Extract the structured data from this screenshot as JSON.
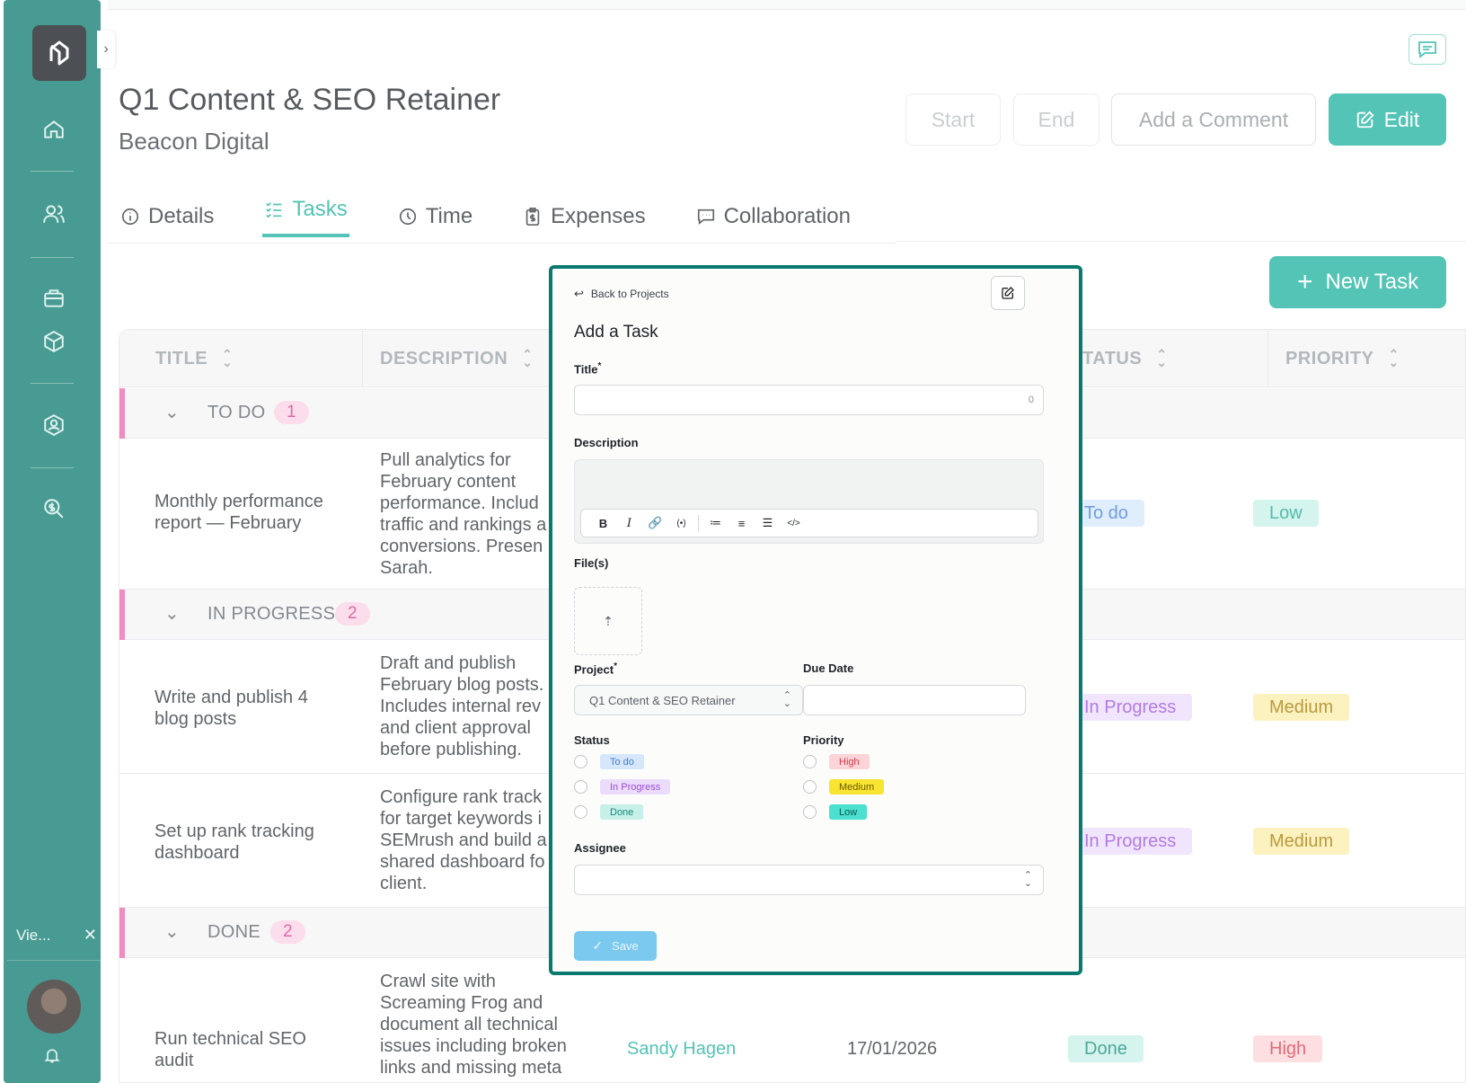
{
  "sidebar": {
    "view_chip": "Vie...",
    "nav_icons": [
      "home-icon",
      "users-icon",
      "briefcase-icon",
      "box-icon",
      "user-circle-icon",
      "search-dollar-icon"
    ]
  },
  "header": {
    "title": "Q1 Content & SEO Retainer",
    "subtitle": "Beacon Digital",
    "buttons": {
      "start": "Start",
      "end": "End",
      "comment": "Add a Comment",
      "edit": "Edit"
    }
  },
  "tabs": [
    {
      "label": "Details",
      "active": false
    },
    {
      "label": "Tasks",
      "active": true
    },
    {
      "label": "Time",
      "active": false
    },
    {
      "label": "Expenses",
      "active": false
    },
    {
      "label": "Collaboration",
      "active": false
    }
  ],
  "new_task_label": "New Task",
  "table": {
    "columns": {
      "title": "TITLE",
      "description": "DESCRIPTION",
      "status": "TATUS",
      "priority": "PRIORITY"
    },
    "groups": [
      {
        "label": "TO DO",
        "count": "1"
      },
      {
        "label": "IN PROGRESS",
        "count": "2"
      },
      {
        "label": "DONE",
        "count": "2"
      }
    ],
    "rows": [
      {
        "title": [
          "Monthly performance",
          "report — February"
        ],
        "desc": [
          "Pull analytics for",
          "February content",
          "performance. Includ",
          "traffic and rankings a",
          "conversions. Presen",
          "Sarah."
        ],
        "status": "To do",
        "priority": "Low"
      },
      {
        "title": [
          "Write and publish 4",
          "blog posts"
        ],
        "desc": [
          "Draft and publish",
          "February blog posts.",
          "Includes internal rev",
          "and client approval",
          "before publishing."
        ],
        "status": "In Progress",
        "priority": "Medium"
      },
      {
        "title": [
          "Set up rank tracking",
          "dashboard"
        ],
        "desc": [
          "Configure rank track",
          "for target keywords i",
          "SEMrush and build a",
          "shared dashboard fo",
          "client."
        ],
        "status": "In Progress",
        "priority": "Medium"
      },
      {
        "title": [
          "Run technical SEO",
          "audit"
        ],
        "desc": [
          "Crawl site with",
          "Screaming Frog and",
          "document all technical",
          "issues including broken",
          "links and missing meta"
        ],
        "assignee": "Sandy Hagen",
        "due": "17/01/2026",
        "status": "Done",
        "priority": "High"
      }
    ]
  },
  "modal": {
    "back": "Back to Projects",
    "title": "Add a Task",
    "fields": {
      "title_label": "Title",
      "title_counter": "0",
      "description_label": "Description",
      "files_label": "File(s)",
      "project_label": "Project",
      "project_value": "Q1 Content & SEO Retainer",
      "due_label": "Due Date",
      "status_label": "Status",
      "priority_label": "Priority",
      "assignee_label": "Assignee"
    },
    "toolbar": [
      "B",
      "I",
      "🔗",
      "(•)",
      "≔",
      "≡",
      "☰",
      "</>"
    ],
    "status_options": [
      "To do",
      "In Progress",
      "Done"
    ],
    "priority_options": [
      "High",
      "Medium",
      "Low"
    ],
    "save": "Save"
  },
  "colors": {
    "sidebar": "#0b7a6e",
    "accent": "#1ab09d",
    "group_bar": "#e867a8"
  }
}
